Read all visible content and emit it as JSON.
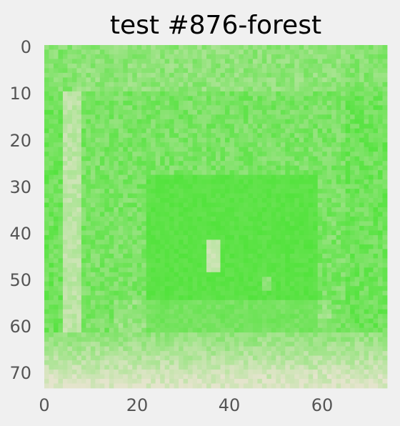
{
  "chart_data": {
    "type": "heatmap",
    "title": "test #876-forest",
    "xlabel": "",
    "ylabel": "",
    "grid": false,
    "colormap": [
      "#e4e4cc",
      "#52e33c"
    ],
    "x_ticks": [
      "0",
      "20",
      "40",
      "60"
    ],
    "y_ticks": [
      "0",
      "10",
      "20",
      "30",
      "40",
      "50",
      "60",
      "70"
    ],
    "xlim": [
      0,
      74
    ],
    "ylim": [
      74,
      0
    ],
    "grid_size": [
      74,
      74
    ],
    "features": [
      {
        "name": "trunk-left",
        "cols": [
          4,
          7
        ],
        "rows": [
          10,
          62
        ]
      },
      {
        "name": "light-patch",
        "cols": [
          35,
          37
        ],
        "rows": [
          42,
          48
        ]
      },
      {
        "name": "small-patch",
        "cols": [
          47,
          48
        ],
        "rows": [
          50,
          52
        ]
      },
      {
        "name": "dark-canopy",
        "cols": [
          22,
          58
        ],
        "rows": [
          28,
          62
        ]
      },
      {
        "name": "ground-path",
        "rows": [
          62,
          74
        ]
      }
    ]
  }
}
